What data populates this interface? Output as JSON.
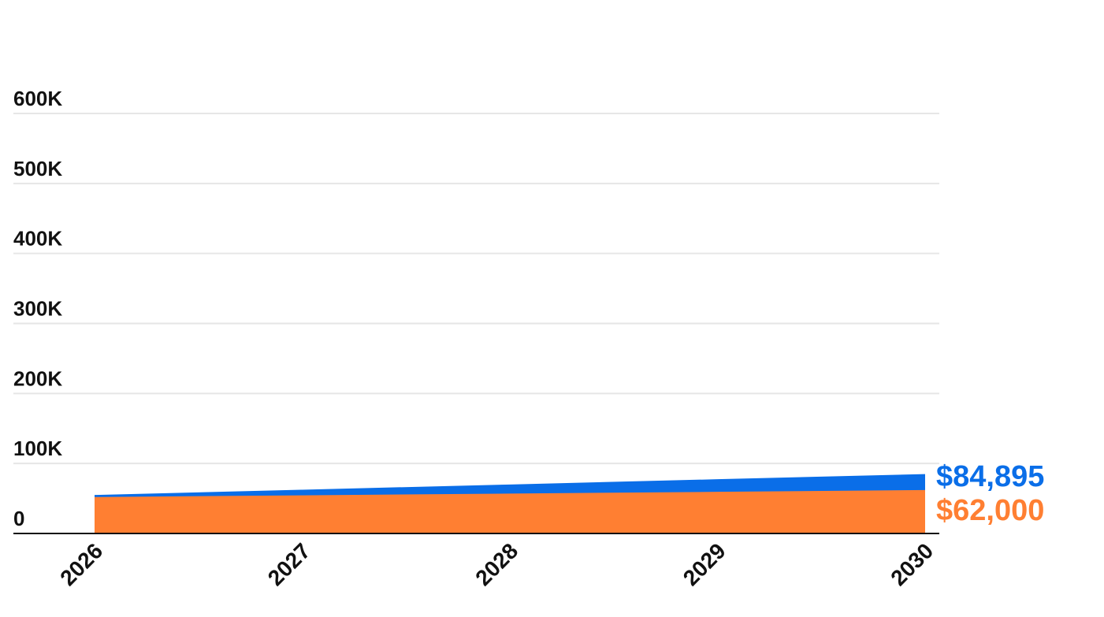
{
  "chart_data": {
    "type": "area",
    "stacked": true,
    "x": [
      "2026",
      "2027",
      "2028",
      "2029",
      "2030"
    ],
    "y_ticks": [
      0,
      100000,
      200000,
      300000,
      400000,
      500000,
      600000
    ],
    "y_tick_labels": [
      "0",
      "100K",
      "200K",
      "300K",
      "400K",
      "500K",
      "600K"
    ],
    "ylim": [
      0,
      600000
    ],
    "grid": true,
    "series": [
      {
        "key": "base",
        "color": "#FF7F32",
        "values": [
          52000,
          54500,
          57000,
          59500,
          62000
        ],
        "end_label": "$62,000"
      },
      {
        "key": "total",
        "color": "#0A6EE8",
        "values": [
          55000,
          62500,
          70000,
          77500,
          84895
        ],
        "end_label": "$84,895"
      }
    ]
  }
}
